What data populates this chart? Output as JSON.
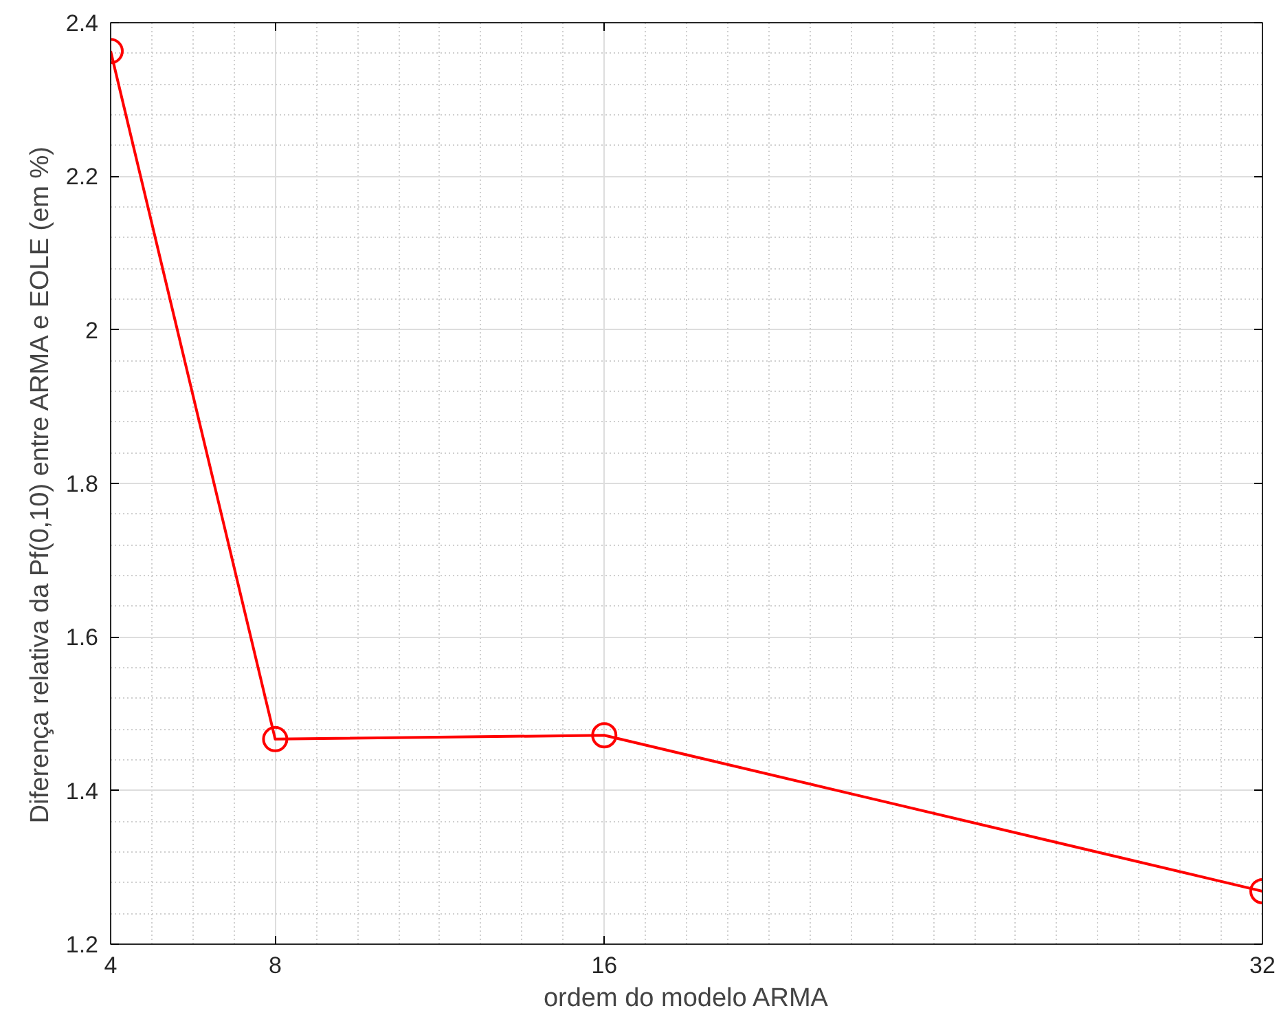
{
  "chart_data": {
    "type": "line",
    "xlabel": "ordem do modelo ARMA",
    "ylabel": "Diferença relativa da Pf(0,10) entre ARMA e EOLE (em %)",
    "x": [
      4,
      8,
      16,
      32
    ],
    "series": [
      {
        "color": "#ff0000",
        "values": [
          2.363,
          1.467,
          1.472,
          1.269
        ]
      }
    ],
    "xlim": [
      4,
      32
    ],
    "ylim": [
      1.2,
      2.4
    ],
    "xticks": [
      4,
      8,
      16,
      32
    ],
    "yticks": [
      1.2,
      1.4,
      1.6,
      1.8,
      2,
      2.2,
      2.4
    ],
    "grid": true,
    "marker": "circle",
    "line_style": "solid"
  }
}
